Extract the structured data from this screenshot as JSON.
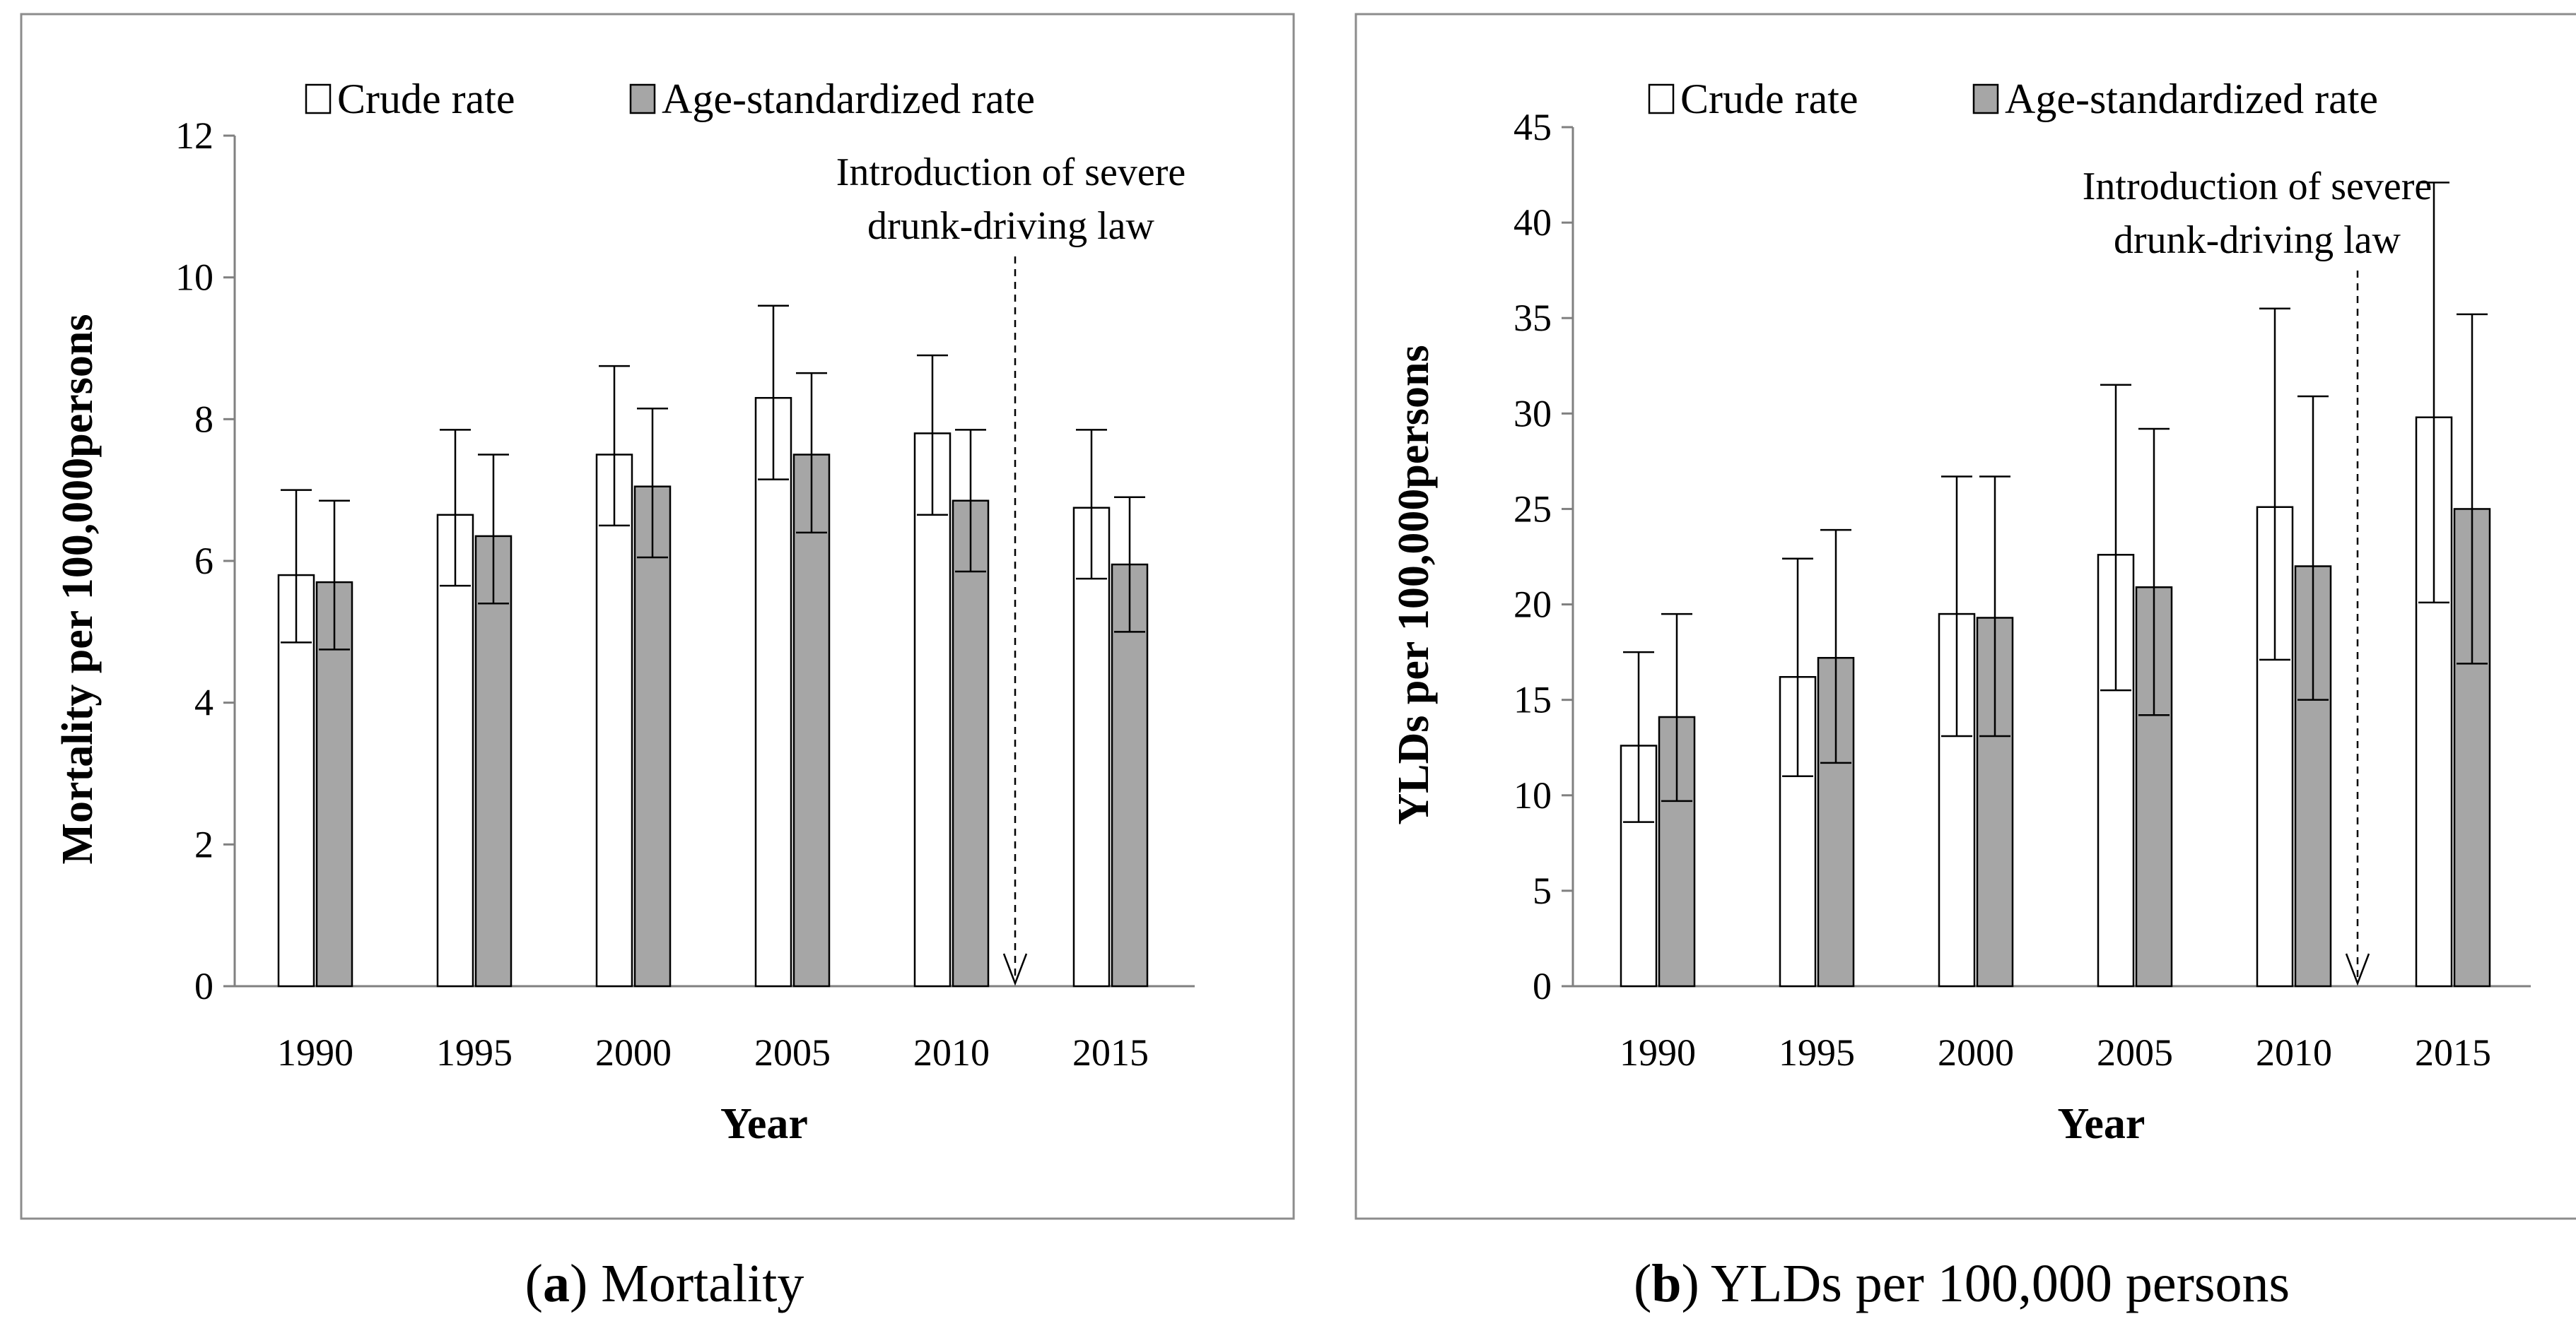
{
  "figures": [
    {
      "id": "a",
      "caption_letter": "a",
      "caption_text": "Mortality"
    },
    {
      "id": "b",
      "caption_letter": "b",
      "caption_text": "YLDs per 100,000 persons"
    }
  ],
  "chart_data": [
    {
      "type": "bar",
      "title": "",
      "xlabel": "Year",
      "ylabel": "Mortality per 100,000persons",
      "categories": [
        "1990",
        "1995",
        "2000",
        "2005",
        "2010",
        "2015"
      ],
      "ylim": [
        0,
        12
      ],
      "yticks": [
        0,
        2,
        4,
        6,
        8,
        10,
        12
      ],
      "grid": false,
      "legend_position": "top",
      "series": [
        {
          "name": "Crude rate",
          "color": "#ffffff",
          "values": [
            5.8,
            6.65,
            7.5,
            8.3,
            7.8,
            6.75
          ],
          "lower": [
            4.85,
            5.65,
            6.5,
            7.15,
            6.65,
            5.75
          ],
          "upper": [
            7.0,
            7.85,
            8.75,
            9.6,
            8.9,
            7.85
          ]
        },
        {
          "name": "Age-standardized rate",
          "color": "#a6a6a6",
          "values": [
            5.7,
            6.35,
            7.05,
            7.5,
            6.85,
            5.95
          ],
          "lower": [
            4.75,
            5.4,
            6.05,
            6.4,
            5.85,
            5.0
          ],
          "upper": [
            6.85,
            7.5,
            8.15,
            8.65,
            7.85,
            6.9
          ]
        }
      ],
      "annotation": {
        "lines": [
          "Introduction of severe",
          "drunk-driving  law"
        ],
        "arrow_at_year": "2012"
      }
    },
    {
      "type": "bar",
      "title": "",
      "xlabel": "Year",
      "ylabel": "YLDs per 100,000persons",
      "categories": [
        "1990",
        "1995",
        "2000",
        "2005",
        "2010",
        "2015"
      ],
      "ylim": [
        0,
        45
      ],
      "yticks": [
        0,
        5,
        10,
        15,
        20,
        25,
        30,
        35,
        40,
        45
      ],
      "grid": false,
      "legend_position": "top",
      "series": [
        {
          "name": "Crude rate",
          "color": "#ffffff",
          "values": [
            12.6,
            16.2,
            19.5,
            22.6,
            25.1,
            29.8
          ],
          "lower": [
            8.6,
            11.0,
            13.1,
            15.5,
            17.1,
            20.1
          ],
          "upper": [
            17.5,
            22.4,
            26.7,
            31.5,
            35.5,
            42.1
          ]
        },
        {
          "name": "Age-standardized rate",
          "color": "#a6a6a6",
          "values": [
            14.1,
            17.2,
            19.3,
            20.9,
            22.0,
            25.0
          ],
          "lower": [
            9.7,
            11.7,
            13.1,
            14.2,
            15.0,
            16.9
          ],
          "upper": [
            19.5,
            23.9,
            26.7,
            29.2,
            30.9,
            35.2
          ]
        }
      ],
      "annotation": {
        "lines": [
          "Introduction of severe",
          "drunk-driving  law"
        ],
        "arrow_at_year": "2012"
      }
    }
  ]
}
